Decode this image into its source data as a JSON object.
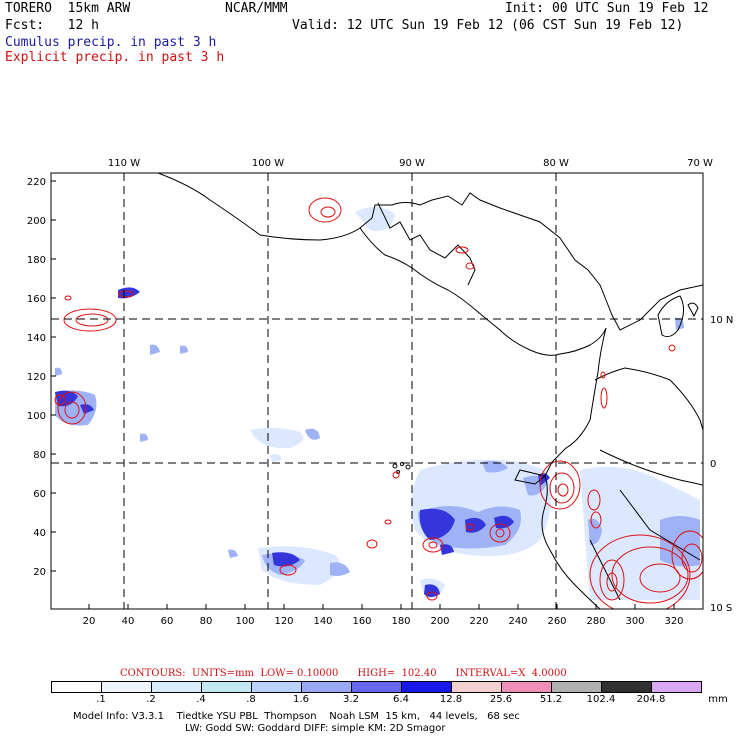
{
  "header": {
    "model": "TORERO  15km ARW",
    "org": "NCAR/MMM",
    "init": "Init: 00 UTC Sun 19 Feb 12",
    "fcst": "Fcst:   12 h",
    "valid": "Valid: 12 UTC Sun 19 Feb 12 (06 CST Sun 19 Feb 12)",
    "field1": "Cumulus precip. in past 3 h",
    "field2": "Explicit precip. in past 3 h"
  },
  "map": {
    "lon_labels": [
      "110 W",
      "100 W",
      "90 W",
      "80 W",
      "70 W"
    ],
    "lat_labels": [
      "10 N",
      "0",
      "10 S"
    ],
    "y_ticks": [
      "220",
      "200",
      "180",
      "160",
      "140",
      "120",
      "100",
      "80",
      "60",
      "40",
      "20"
    ],
    "x_ticks": [
      "20",
      "40",
      "60",
      "80",
      "100",
      "120",
      "140",
      "160",
      "180",
      "200",
      "220",
      "240",
      "260",
      "280",
      "300",
      "320"
    ],
    "colors": {
      "coast": "#000000",
      "grid": "#000000",
      "explicit": "#dd1111",
      "cumulus_light": "#cfe0ff",
      "cumulus_mid": "#8fa6f2",
      "cumulus_dark": "#3a3ae0"
    }
  },
  "legend": {
    "contours": "CONTOURS:  UNITS=mm  LOW= 0.10000      HIGH=  102.40      INTERVAL=X  4.0000",
    "values": [
      ".1",
      ".2",
      ".4",
      ".8",
      "1.6",
      "3.2",
      "6.4",
      "12.8",
      "25.6",
      "51.2",
      "102.4",
      "204.8"
    ],
    "unit": "mm",
    "colors": [
      "#ffffff",
      "#eef5ff",
      "#d8ecff",
      "#c4e7f4",
      "#b8d2fb",
      "#98a8f4",
      "#6666ee",
      "#1818e8",
      "#f3d0d0",
      "#f090b8",
      "#b0b0b0",
      "#303030",
      "#d8a8f4"
    ]
  },
  "footer": {
    "line1": "Model Info: V3.3.1    Tiedtke YSU PBL  Thompson    Noah LSM  15 km,   44 levels,   68 sec",
    "line2": "LW: Godd SW: Goddard DIFF: simple KM: 2D Smagor"
  }
}
